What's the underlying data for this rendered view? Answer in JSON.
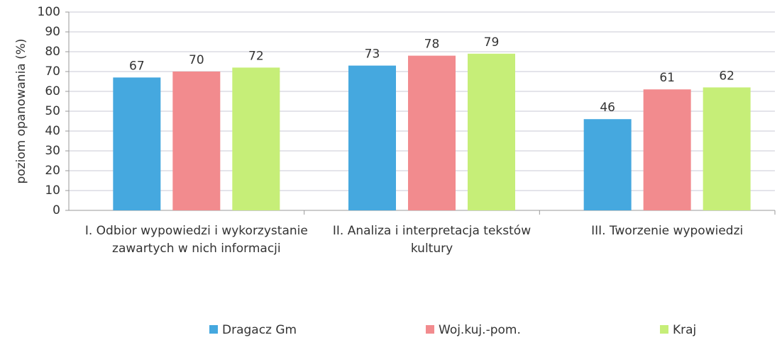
{
  "chart_data": {
    "type": "bar",
    "y_label": "poziom opanowania (%)",
    "categories": [
      "I. Odbior wypowiedzi i wykorzystanie zawartych w nich informacji",
      "II. Analiza i interpretacja tekstów kultury",
      "III. Tworzenie wypowiedzi"
    ],
    "series": [
      {
        "name": "Dragacz Gm",
        "color": "#45a8df",
        "values": [
          67,
          73,
          46
        ]
      },
      {
        "name": "Woj.kuj.-pom.",
        "color": "#f28b8e",
        "values": [
          70,
          78,
          61
        ]
      },
      {
        "name": "Kraj",
        "color": "#c6ee78",
        "values": [
          72,
          79,
          62
        ]
      }
    ],
    "ylim": [
      0,
      100
    ],
    "yticks": [
      0,
      10,
      20,
      30,
      40,
      50,
      60,
      70,
      80,
      90,
      100
    ],
    "grid": true,
    "legend": "bottom"
  }
}
